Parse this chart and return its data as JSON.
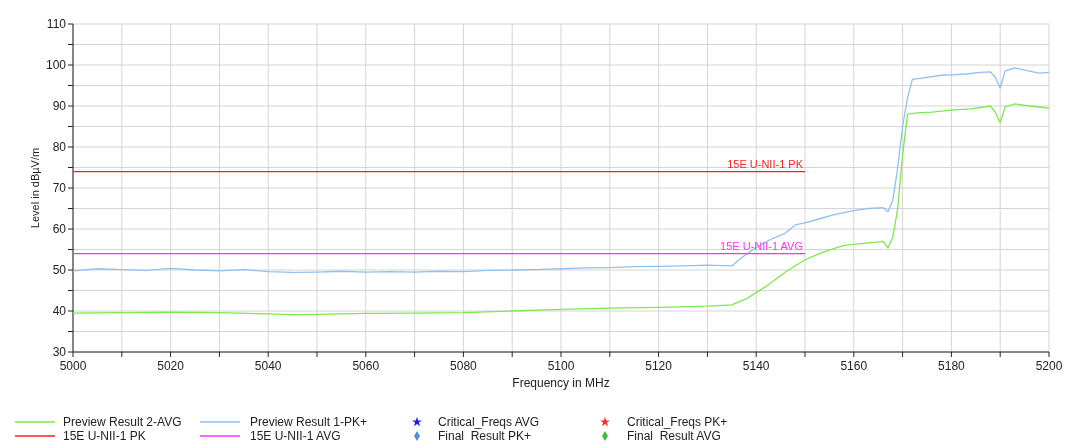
{
  "chart_data": {
    "type": "line",
    "xlabel": "Frequency in MHz",
    "ylabel": "Level in dBµV/m",
    "xlim": [
      5000,
      5200
    ],
    "ylim": [
      30,
      110
    ],
    "xticks": [
      5000,
      {
        "value": 5010,
        "label": null
      },
      5020,
      {
        "value": 5030,
        "label": null
      },
      5040,
      {
        "value": 5050,
        "label": null
      },
      5060,
      {
        "value": 5070,
        "label": null
      },
      5080,
      {
        "value": 5090,
        "label": null
      },
      5100,
      {
        "value": 5110,
        "label": null
      },
      5120,
      {
        "value": 5130,
        "label": null
      },
      5140,
      {
        "value": 5150,
        "label": null
      },
      5160,
      {
        "value": 5170,
        "label": null
      },
      5180,
      {
        "value": 5190,
        "label": null
      },
      5200
    ],
    "yticks": [
      30,
      {
        "value": 35,
        "label": null
      },
      40,
      {
        "value": 45,
        "label": null
      },
      50,
      {
        "value": 55,
        "label": null
      },
      60,
      {
        "value": 65,
        "label": null
      },
      70,
      {
        "value": 75,
        "label": null
      },
      80,
      {
        "value": 85,
        "label": null
      },
      90,
      {
        "value": 95,
        "label": null
      },
      100,
      {
        "value": 105,
        "label": null
      },
      110
    ],
    "grid": true,
    "legend": "bottom",
    "series": [
      {
        "name": "Preview Result 2-AVG",
        "color": "#7ee84c",
        "x": [
          5000,
          5010,
          5020,
          5030,
          5040,
          5045,
          5050,
          5060,
          5070,
          5080,
          5090,
          5100,
          5110,
          5120,
          5130,
          5135,
          5138,
          5142,
          5146,
          5150,
          5154,
          5158,
          5162,
          5166,
          5167,
          5168,
          5169,
          5170,
          5171,
          5173,
          5176,
          5180,
          5184,
          5188,
          5189,
          5190,
          5191,
          5193,
          5196,
          5200
        ],
        "values": [
          39.5,
          39.6,
          39.7,
          39.6,
          39.3,
          39.1,
          39.2,
          39.4,
          39.5,
          39.6,
          40,
          40.4,
          40.7,
          40.9,
          41.2,
          41.5,
          43,
          46,
          49.5,
          52.5,
          54.5,
          56,
          56.5,
          57,
          55.4,
          58,
          65,
          78,
          88,
          88.3,
          88.5,
          89,
          89.3,
          90,
          88.5,
          85.9,
          89.8,
          90.5,
          90,
          89.5
        ]
      },
      {
        "name": "15E U-NII-1 PK",
        "color": "#ff2020",
        "x": [
          5000,
          5150
        ],
        "values": [
          74,
          74
        ]
      },
      {
        "name": "Preview Result 1-PK+",
        "color": "#8ec1f2",
        "x": [
          5000,
          5005,
          5010,
          5015,
          5020,
          5025,
          5030,
          5035,
          5040,
          5045,
          5050,
          5055,
          5060,
          5065,
          5070,
          5075,
          5080,
          5085,
          5090,
          5095,
          5100,
          5105,
          5110,
          5115,
          5120,
          5125,
          5130,
          5135,
          5137,
          5140,
          5143,
          5146,
          5148,
          5150,
          5153,
          5156,
          5160,
          5163,
          5166,
          5167,
          5168,
          5169,
          5170,
          5171,
          5172,
          5175,
          5178,
          5180,
          5183,
          5186,
          5188,
          5189,
          5190,
          5191,
          5193,
          5196,
          5198,
          5200
        ],
        "values": [
          49.8,
          50.3,
          50.1,
          49.9,
          50.4,
          50,
          49.8,
          50.1,
          49.6,
          49.4,
          49.5,
          49.7,
          49.5,
          49.6,
          49.5,
          49.7,
          49.6,
          49.9,
          50,
          50.1,
          50.3,
          50.5,
          50.6,
          50.8,
          50.9,
          51,
          51.2,
          51,
          53,
          55.5,
          57.5,
          59,
          61,
          61.5,
          62.5,
          63.5,
          64.5,
          65,
          65.2,
          64.2,
          67,
          75,
          85,
          92,
          96.5,
          97,
          97.5,
          97.6,
          97.8,
          98.2,
          98.3,
          97,
          94.4,
          98.5,
          99.3,
          98.5,
          98,
          98.2
        ]
      },
      {
        "name": "15E U-NII-1 AVG",
        "color": "#ff30ff",
        "x": [
          5000,
          5150
        ],
        "values": [
          54,
          54
        ]
      },
      {
        "name": "Critical_Freqs AVG",
        "type": "scatter",
        "marker": "star",
        "color": "#1f1fe0"
      },
      {
        "name": "Final_Result PK+",
        "type": "scatter",
        "marker": "diamond",
        "color": "#4a90e2"
      },
      {
        "name": "Critical_Freqs PK+",
        "type": "scatter",
        "marker": "star",
        "color": "#f03030"
      },
      {
        "name": "Final_Result AVG",
        "type": "scatter",
        "marker": "diamond",
        "color": "#3cc03c"
      }
    ],
    "annotations": [
      {
        "text": "15E U-NII-1 PK",
        "x": 5150,
        "y": 74
      },
      {
        "text": "15E U-NII-1 AVG",
        "x": 5150,
        "y": 54
      }
    ]
  }
}
